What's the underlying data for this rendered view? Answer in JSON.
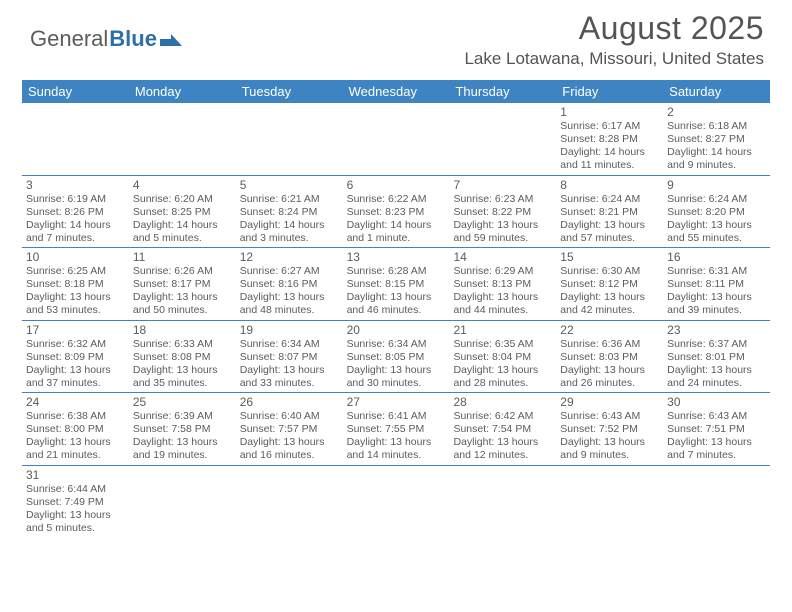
{
  "logo": {
    "general": "General",
    "blue": "Blue"
  },
  "title": "August 2025",
  "location": "Lake Lotawana, Missouri, United States",
  "colors": {
    "header_bg": "#3e84c3",
    "header_text": "#ffffff",
    "body_text": "#5c5c5c",
    "rule": "#3e84c3",
    "logo_blue": "#2f6fa8"
  },
  "dow": [
    "Sunday",
    "Monday",
    "Tuesday",
    "Wednesday",
    "Thursday",
    "Friday",
    "Saturday"
  ],
  "weeks": [
    [
      null,
      null,
      null,
      null,
      null,
      {
        "n": "1",
        "sr": "Sunrise: 6:17 AM",
        "ss": "Sunset: 8:28 PM",
        "d1": "Daylight: 14 hours",
        "d2": "and 11 minutes."
      },
      {
        "n": "2",
        "sr": "Sunrise: 6:18 AM",
        "ss": "Sunset: 8:27 PM",
        "d1": "Daylight: 14 hours",
        "d2": "and 9 minutes."
      }
    ],
    [
      {
        "n": "3",
        "sr": "Sunrise: 6:19 AM",
        "ss": "Sunset: 8:26 PM",
        "d1": "Daylight: 14 hours",
        "d2": "and 7 minutes."
      },
      {
        "n": "4",
        "sr": "Sunrise: 6:20 AM",
        "ss": "Sunset: 8:25 PM",
        "d1": "Daylight: 14 hours",
        "d2": "and 5 minutes."
      },
      {
        "n": "5",
        "sr": "Sunrise: 6:21 AM",
        "ss": "Sunset: 8:24 PM",
        "d1": "Daylight: 14 hours",
        "d2": "and 3 minutes."
      },
      {
        "n": "6",
        "sr": "Sunrise: 6:22 AM",
        "ss": "Sunset: 8:23 PM",
        "d1": "Daylight: 14 hours",
        "d2": "and 1 minute."
      },
      {
        "n": "7",
        "sr": "Sunrise: 6:23 AM",
        "ss": "Sunset: 8:22 PM",
        "d1": "Daylight: 13 hours",
        "d2": "and 59 minutes."
      },
      {
        "n": "8",
        "sr": "Sunrise: 6:24 AM",
        "ss": "Sunset: 8:21 PM",
        "d1": "Daylight: 13 hours",
        "d2": "and 57 minutes."
      },
      {
        "n": "9",
        "sr": "Sunrise: 6:24 AM",
        "ss": "Sunset: 8:20 PM",
        "d1": "Daylight: 13 hours",
        "d2": "and 55 minutes."
      }
    ],
    [
      {
        "n": "10",
        "sr": "Sunrise: 6:25 AM",
        "ss": "Sunset: 8:18 PM",
        "d1": "Daylight: 13 hours",
        "d2": "and 53 minutes."
      },
      {
        "n": "11",
        "sr": "Sunrise: 6:26 AM",
        "ss": "Sunset: 8:17 PM",
        "d1": "Daylight: 13 hours",
        "d2": "and 50 minutes."
      },
      {
        "n": "12",
        "sr": "Sunrise: 6:27 AM",
        "ss": "Sunset: 8:16 PM",
        "d1": "Daylight: 13 hours",
        "d2": "and 48 minutes."
      },
      {
        "n": "13",
        "sr": "Sunrise: 6:28 AM",
        "ss": "Sunset: 8:15 PM",
        "d1": "Daylight: 13 hours",
        "d2": "and 46 minutes."
      },
      {
        "n": "14",
        "sr": "Sunrise: 6:29 AM",
        "ss": "Sunset: 8:13 PM",
        "d1": "Daylight: 13 hours",
        "d2": "and 44 minutes."
      },
      {
        "n": "15",
        "sr": "Sunrise: 6:30 AM",
        "ss": "Sunset: 8:12 PM",
        "d1": "Daylight: 13 hours",
        "d2": "and 42 minutes."
      },
      {
        "n": "16",
        "sr": "Sunrise: 6:31 AM",
        "ss": "Sunset: 8:11 PM",
        "d1": "Daylight: 13 hours",
        "d2": "and 39 minutes."
      }
    ],
    [
      {
        "n": "17",
        "sr": "Sunrise: 6:32 AM",
        "ss": "Sunset: 8:09 PM",
        "d1": "Daylight: 13 hours",
        "d2": "and 37 minutes."
      },
      {
        "n": "18",
        "sr": "Sunrise: 6:33 AM",
        "ss": "Sunset: 8:08 PM",
        "d1": "Daylight: 13 hours",
        "d2": "and 35 minutes."
      },
      {
        "n": "19",
        "sr": "Sunrise: 6:34 AM",
        "ss": "Sunset: 8:07 PM",
        "d1": "Daylight: 13 hours",
        "d2": "and 33 minutes."
      },
      {
        "n": "20",
        "sr": "Sunrise: 6:34 AM",
        "ss": "Sunset: 8:05 PM",
        "d1": "Daylight: 13 hours",
        "d2": "and 30 minutes."
      },
      {
        "n": "21",
        "sr": "Sunrise: 6:35 AM",
        "ss": "Sunset: 8:04 PM",
        "d1": "Daylight: 13 hours",
        "d2": "and 28 minutes."
      },
      {
        "n": "22",
        "sr": "Sunrise: 6:36 AM",
        "ss": "Sunset: 8:03 PM",
        "d1": "Daylight: 13 hours",
        "d2": "and 26 minutes."
      },
      {
        "n": "23",
        "sr": "Sunrise: 6:37 AM",
        "ss": "Sunset: 8:01 PM",
        "d1": "Daylight: 13 hours",
        "d2": "and 24 minutes."
      }
    ],
    [
      {
        "n": "24",
        "sr": "Sunrise: 6:38 AM",
        "ss": "Sunset: 8:00 PM",
        "d1": "Daylight: 13 hours",
        "d2": "and 21 minutes."
      },
      {
        "n": "25",
        "sr": "Sunrise: 6:39 AM",
        "ss": "Sunset: 7:58 PM",
        "d1": "Daylight: 13 hours",
        "d2": "and 19 minutes."
      },
      {
        "n": "26",
        "sr": "Sunrise: 6:40 AM",
        "ss": "Sunset: 7:57 PM",
        "d1": "Daylight: 13 hours",
        "d2": "and 16 minutes."
      },
      {
        "n": "27",
        "sr": "Sunrise: 6:41 AM",
        "ss": "Sunset: 7:55 PM",
        "d1": "Daylight: 13 hours",
        "d2": "and 14 minutes."
      },
      {
        "n": "28",
        "sr": "Sunrise: 6:42 AM",
        "ss": "Sunset: 7:54 PM",
        "d1": "Daylight: 13 hours",
        "d2": "and 12 minutes."
      },
      {
        "n": "29",
        "sr": "Sunrise: 6:43 AM",
        "ss": "Sunset: 7:52 PM",
        "d1": "Daylight: 13 hours",
        "d2": "and 9 minutes."
      },
      {
        "n": "30",
        "sr": "Sunrise: 6:43 AM",
        "ss": "Sunset: 7:51 PM",
        "d1": "Daylight: 13 hours",
        "d2": "and 7 minutes."
      }
    ],
    [
      {
        "n": "31",
        "sr": "Sunrise: 6:44 AM",
        "ss": "Sunset: 7:49 PM",
        "d1": "Daylight: 13 hours",
        "d2": "and 5 minutes."
      },
      null,
      null,
      null,
      null,
      null,
      null
    ]
  ]
}
